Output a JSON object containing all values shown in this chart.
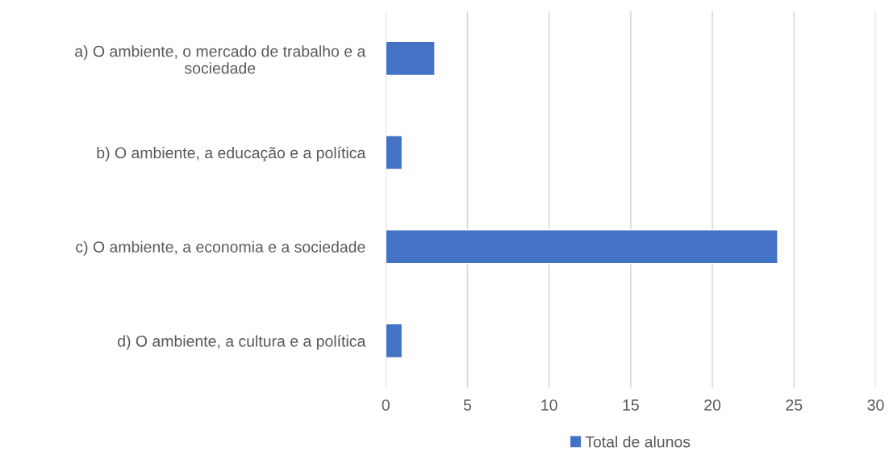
{
  "chart_data": {
    "type": "bar",
    "orientation": "horizontal",
    "categories": [
      "a) O ambiente, o mercado de trabalho e a\nsociedade",
      "b) O ambiente, a educação e a política",
      "c) O ambiente, a economia e a sociedade",
      "d) O ambiente, a cultura e a política"
    ],
    "series": [
      {
        "name": "Total de alunos",
        "color": "#4472c4",
        "values": [
          3,
          1,
          24,
          1
        ]
      }
    ],
    "xlim": [
      0,
      30
    ],
    "xticks": [
      0,
      5,
      10,
      15,
      20,
      25,
      30
    ],
    "grid": "x",
    "legend": "bottom"
  }
}
